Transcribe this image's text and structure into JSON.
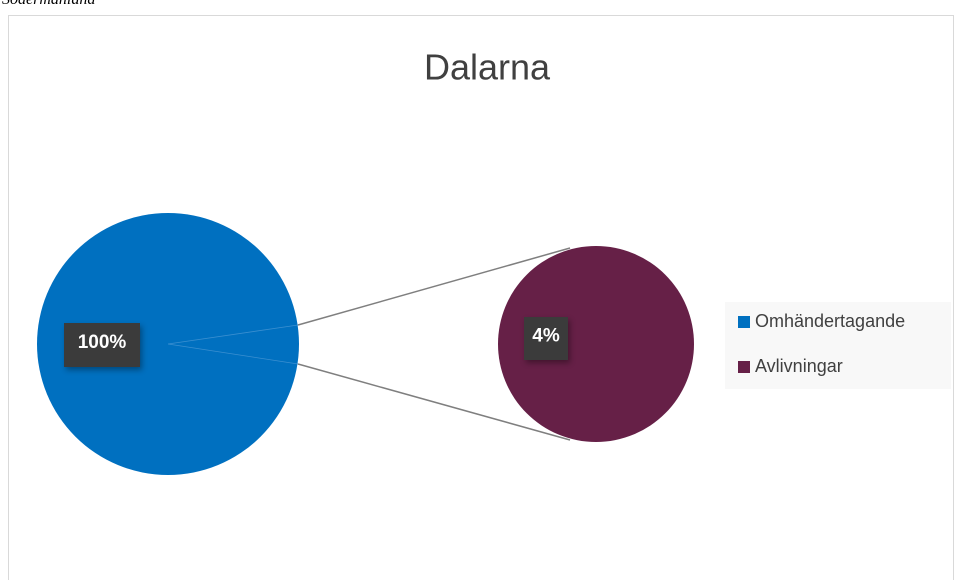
{
  "caption": "Södermanland",
  "chart_data": {
    "type": "pie-of-pie",
    "title": "Dalarna",
    "categories": [
      "Omhändertagande",
      "Avlivningar"
    ],
    "values": [
      100,
      4
    ],
    "value_labels": [
      "100%",
      "4%"
    ],
    "colors": [
      "#0070c0",
      "#662047"
    ],
    "legend": "right"
  }
}
